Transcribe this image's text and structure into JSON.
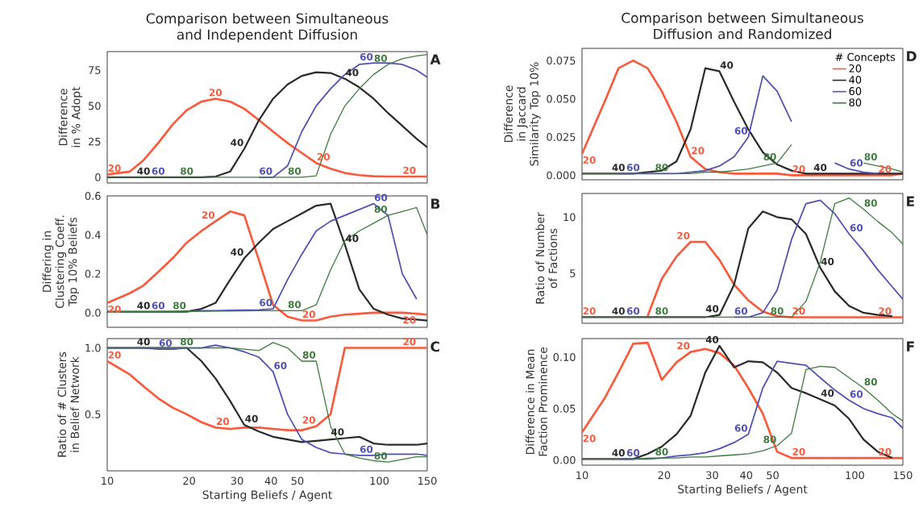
{
  "chart_data": [
    {
      "type": "line",
      "title": "Comparison between Simultaneous and Independent Diffusion",
      "ylabel": "Difference in % Adopt",
      "log": "x",
      "tick_labels": "y",
      "xlim": [
        10,
        150
      ],
      "xticks": [
        10,
        20,
        30,
        40,
        50,
        {
          "value": 60,
          "label": null
        },
        {
          "value": 70,
          "label": null
        },
        {
          "value": 80,
          "label": null
        },
        {
          "value": 90,
          "label": null
        },
        100,
        150
      ],
      "ylim": [
        -4,
        88
      ],
      "yticks": [
        0,
        25,
        50,
        75
      ],
      "x": [
        10,
        12.1,
        13.6,
        15.4,
        17.4,
        19.6,
        22.2,
        25,
        28.3,
        31.9,
        36.1,
        40.7,
        46,
        51.9,
        58.6,
        66.2,
        74.7,
        84.4,
        95.3,
        107.6,
        121.5,
        137.1,
        150
      ],
      "series": [
        {
          "name": "20",
          "color": "#fa5a3c",
          "values": [
            2,
            4,
            12,
            24,
            37,
            47,
            53,
            55,
            53,
            48,
            40,
            32,
            24,
            17,
            10,
            6,
            3,
            1.5,
            0.7,
            0.5,
            0.5,
            0.5,
            0.5
          ]
        },
        {
          "name": "40",
          "color": "#2a2a2a",
          "values": [
            0,
            0,
            0,
            0,
            0,
            0,
            0,
            0.5,
            4,
            20,
            40,
            55,
            65,
            71,
            73.5,
            73,
            69,
            63,
            55,
            45,
            36,
            27,
            21
          ]
        },
        {
          "name": "60",
          "color": "#4f4fb5",
          "values": [
            null,
            null,
            null,
            null,
            null,
            null,
            null,
            null,
            null,
            null,
            0,
            0,
            8,
            32,
            50,
            62,
            72,
            79,
            80,
            80,
            79,
            75,
            70
          ]
        },
        {
          "name": "80",
          "color": "#3e7b3e",
          "values": [
            0,
            0,
            0,
            0,
            0,
            0,
            0,
            0,
            0,
            0,
            0,
            0,
            0,
            0,
            1,
            30,
            50,
            62,
            72,
            79,
            83,
            85,
            86
          ]
        }
      ],
      "annotations": [
        "A"
      ]
    },
    {
      "type": "line",
      "title": "Comparison between Simultaneous Diffusion and Randomized",
      "ylabel": "Difference in Jaccard Similarity Top 10%",
      "log": "x",
      "tick_labels": "y",
      "legend": "top right",
      "legend_title": "# Concepts",
      "xlim": [
        10,
        150
      ],
      "xticks": [
        10,
        20,
        30,
        40,
        50,
        {
          "value": 60,
          "label": null
        },
        {
          "value": 70,
          "label": null
        },
        {
          "value": 80,
          "label": null
        },
        {
          "value": 90,
          "label": null
        },
        100,
        150
      ],
      "ylim": [
        -0.003,
        0.083
      ],
      "yticks": [
        {
          "value": 0,
          "label": "0.000"
        },
        {
          "value": 0.025,
          "label": "0.025"
        },
        {
          "value": 0.05,
          "label": "0.050"
        },
        {
          "value": 0.075,
          "label": "0.075"
        }
      ],
      "x": [
        10,
        12.1,
        13.6,
        15.4,
        17.4,
        19.6,
        22.2,
        25,
        28.3,
        31.9,
        36.1,
        40.7,
        46,
        51.9,
        58.6,
        66.2,
        74.7,
        84.4,
        95.3,
        107.6,
        121.5,
        137.1,
        150
      ],
      "series": [
        {
          "name": "20",
          "color": "#fa5a3c",
          "values": [
            0.014,
            0.048,
            0.07,
            0.075,
            0.07,
            0.055,
            0.035,
            0.012,
            0.004,
            0.002,
            0.001,
            0.001,
            0.001,
            0.001,
            0,
            0,
            0,
            0,
            0,
            0,
            0,
            0,
            0.001
          ]
        },
        {
          "name": "40",
          "color": "#2a2a2a",
          "values": [
            0.001,
            0.001,
            0.001,
            0.001,
            0.002,
            0.003,
            0.009,
            0.03,
            0.07,
            0.068,
            0.048,
            0.03,
            0.015,
            0.007,
            0.003,
            0.001,
            0.001,
            0.001,
            0.001,
            0.001,
            0.001,
            0.001,
            0.001
          ]
        },
        {
          "name": "60",
          "color": "#4f4fb5",
          "values": [
            null,
            null,
            0.001,
            0.001,
            0.001,
            0.001,
            0.001,
            0.002,
            0.003,
            0.006,
            0.012,
            0.025,
            0.065,
            0.055,
            0.035,
            null,
            null,
            0.008,
            0.004,
            0.002,
            0.001,
            null,
            null
          ]
        },
        {
          "name": "80",
          "color": "#3e7b3e",
          "values": [
            0.001,
            0.001,
            0.001,
            0.001,
            0.001,
            0.001,
            0.001,
            0.001,
            0.002,
            0.002,
            0.003,
            0.004,
            0.006,
            0.008,
            0.02,
            null,
            null,
            null,
            null,
            0.008,
            0.006,
            0.004,
            0.002
          ]
        }
      ],
      "annotations": [
        "D"
      ]
    },
    {
      "type": "line",
      "ylabel": "Differing in Clustering Coeff. Top 10% Beliefs",
      "log": "x",
      "tick_labels": "y",
      "xlim": [
        10,
        150
      ],
      "xticks": [
        10,
        20,
        30,
        40,
        50,
        {
          "value": 60,
          "label": null
        },
        {
          "value": 70,
          "label": null
        },
        {
          "value": 80,
          "label": null
        },
        {
          "value": 90,
          "label": null
        },
        100,
        150
      ],
      "ylim": [
        -0.075,
        0.6
      ],
      "yticks": [
        {
          "value": 0,
          "label": "0.0"
        },
        {
          "value": 0.2,
          "label": "0.2"
        },
        {
          "value": 0.4,
          "label": "0.4"
        },
        {
          "value": 0.6,
          "label": "0.6"
        }
      ],
      "x": [
        10,
        12.1,
        13.6,
        15.4,
        17.4,
        19.6,
        22.2,
        25,
        28.3,
        31.9,
        36.1,
        40.7,
        46,
        51.9,
        58.6,
        66.2,
        74.7,
        84.4,
        95.3,
        107.6,
        121.5,
        137.1,
        150
      ],
      "series": [
        {
          "name": "20",
          "color": "#fa5a3c",
          "values": [
            0.05,
            0.1,
            0.14,
            0.21,
            0.28,
            0.36,
            0.42,
            0.47,
            0.52,
            0.5,
            0.27,
            0.04,
            -0.02,
            -0.04,
            -0.04,
            -0.02,
            -0.01,
            -0.005,
            0,
            0,
            0,
            -0.005,
            -0.01
          ]
        },
        {
          "name": "40",
          "color": "#2a2a2a",
          "values": [
            0.005,
            0.005,
            0.005,
            0.005,
            0.005,
            0.005,
            0.02,
            0.05,
            0.17,
            0.28,
            0.36,
            0.43,
            0.47,
            0.51,
            0.55,
            0.56,
            0.35,
            0.12,
            0.02,
            -0.01,
            -0.03,
            -0.035,
            -0.04
          ]
        },
        {
          "name": "60",
          "color": "#4f4fb5",
          "values": [
            null,
            null,
            null,
            0.005,
            0.005,
            0.008,
            0.01,
            0.01,
            0.012,
            0.013,
            0.015,
            0.02,
            0.17,
            0.3,
            0.42,
            0.47,
            0.5,
            0.53,
            0.56,
            0.5,
            0.2,
            0.07,
            null
          ]
        },
        {
          "name": "80",
          "color": "#3e7b3e",
          "values": [
            0.005,
            0.005,
            0.005,
            0.005,
            0.005,
            0.005,
            0.007,
            0.008,
            0.008,
            0.009,
            0.01,
            0.01,
            0.01,
            0.01,
            0.04,
            0.22,
            0.37,
            0.42,
            0.46,
            0.5,
            0.52,
            0.54,
            0.4
          ]
        }
      ],
      "annotations": [
        "B"
      ]
    },
    {
      "type": "line",
      "ylabel": "Ratio of Number of Factions",
      "log": "x",
      "tick_labels": "y",
      "xlim": [
        10,
        150
      ],
      "xticks": [
        10,
        20,
        30,
        40,
        50,
        {
          "value": 60,
          "label": null
        },
        {
          "value": 70,
          "label": null
        },
        {
          "value": 80,
          "label": null
        },
        {
          "value": 90,
          "label": null
        },
        100,
        150
      ],
      "ylim": [
        0.56,
        12.1
      ],
      "yticks": [
        5,
        10
      ],
      "x": [
        10,
        12.1,
        13.6,
        15.4,
        17.4,
        19.6,
        22.2,
        25,
        28.3,
        31.9,
        36.1,
        40.7,
        46,
        51.9,
        58.6,
        66.2,
        74.7,
        84.4,
        95.3,
        107.6,
        121.5,
        137.1,
        150
      ],
      "series": [
        {
          "name": "20",
          "color": "#fa5a3c",
          "values": [
            null,
            null,
            null,
            null,
            1.2,
            4.5,
            6.5,
            7.8,
            7.8,
            6.2,
            4.0,
            2.6,
            1.6,
            1.2,
            1.1,
            1.1,
            1.1,
            1.1,
            1.1,
            1.1,
            1.1,
            1.1,
            1.1
          ]
        },
        {
          "name": "40",
          "color": "#2a2a2a",
          "values": [
            1.1,
            1.1,
            1.1,
            1.1,
            1.1,
            1.1,
            1.1,
            1.1,
            1.1,
            1.3,
            4,
            9,
            10.5,
            10,
            9.8,
            8.5,
            5.5,
            3.4,
            2.1,
            1.5,
            1.3,
            1.2,
            null
          ]
        },
        {
          "name": "60",
          "color": "#4f4fb5",
          "values": [
            null,
            null,
            null,
            null,
            null,
            null,
            null,
            null,
            null,
            null,
            1.1,
            1.1,
            1.5,
            3.5,
            8,
            11.2,
            11.5,
            10.3,
            8.5,
            7,
            5.3,
            3.8,
            2.7
          ]
        },
        {
          "name": "80",
          "color": "#3e7b3e",
          "values": [
            1.1,
            1.1,
            1.1,
            1.1,
            1.1,
            1.1,
            1.1,
            1.1,
            1.1,
            1.1,
            1.1,
            1.1,
            1.1,
            1.1,
            1.1,
            2.5,
            6,
            11.2,
            11.7,
            10.7,
            9.6,
            8.6,
            7.6
          ]
        }
      ],
      "annotations": [
        "E"
      ]
    },
    {
      "type": "line",
      "ylabel": "Ratio of # Clusters in Belief Network",
      "xlabel": "Starting Beliefs / Agent",
      "log": "x",
      "xlim": [
        10,
        150
      ],
      "xticks": [
        10,
        20,
        30,
        40,
        50,
        {
          "value": 60,
          "label": null
        },
        {
          "value": 70,
          "label": null
        },
        {
          "value": 80,
          "label": null
        },
        {
          "value": 90,
          "label": null
        },
        100,
        150
      ],
      "ylim": [
        0.074,
        1.07
      ],
      "yticks": [
        0.5,
        {
          "value": 1,
          "label": "1.0"
        }
      ],
      "x": [
        10,
        12.1,
        13.6,
        15.4,
        17.4,
        19.6,
        22.2,
        25,
        28.3,
        31.9,
        36.1,
        40.7,
        46,
        51.9,
        58.6,
        66.2,
        74.7,
        84.4,
        95.3,
        107.6,
        121.5,
        137.1,
        150
      ],
      "series": [
        {
          "name": "20",
          "color": "#fa5a3c",
          "values": [
            0.9,
            0.8,
            0.71,
            0.62,
            0.55,
            0.5,
            0.44,
            0.4,
            0.39,
            0.4,
            0.4,
            0.39,
            0.38,
            0.38,
            0.41,
            0.5,
            1.0,
            1.0,
            1.0,
            1.0,
            1.0,
            1.0,
            1.0
          ]
        },
        {
          "name": "40",
          "color": "#2a2a2a",
          "values": [
            1,
            1,
            1,
            1,
            1,
            1,
            0.9,
            0.77,
            0.6,
            0.42,
            0.37,
            0.33,
            0.31,
            0.29,
            0.3,
            0.31,
            0.32,
            0.33,
            0.28,
            0.27,
            0.27,
            0.27,
            0.28
          ]
        },
        {
          "name": "60",
          "color": "#4f4fb5",
          "values": [
            1,
            1,
            1,
            0.99,
            0.99,
            1,
            1,
            1.02,
            1.0,
            0.97,
            0.93,
            0.82,
            0.5,
            0.31,
            0.25,
            0.21,
            0.2,
            0.19,
            0.19,
            0.2,
            0.2,
            0.2,
            0.19
          ]
        },
        {
          "name": "80",
          "color": "#3e7b3e",
          "values": [
            1,
            1,
            1,
            1,
            1,
            1,
            1,
            1,
            1,
            0.99,
            0.98,
            1.04,
            1.0,
            0.9,
            0.9,
            0.41,
            0.2,
            0.17,
            0.15,
            0.14,
            0.16,
            0.18,
            0.18
          ]
        }
      ],
      "annotations": [
        "C"
      ]
    },
    {
      "type": "line",
      "ylabel": "Difference in Mean Faction Prominence",
      "xlabel": "Starting Beliefs / Agent",
      "log": "x",
      "xlim": [
        10,
        150
      ],
      "xticks": [
        10,
        20,
        30,
        40,
        50,
        {
          "value": 60,
          "label": null
        },
        {
          "value": 70,
          "label": null
        },
        {
          "value": 80,
          "label": null
        },
        {
          "value": 90,
          "label": null
        },
        100,
        150
      ],
      "ylim": [
        -0.005,
        0.118
      ],
      "yticks": [
        {
          "value": 0,
          "label": "0.00"
        },
        0.05,
        {
          "value": 0.1,
          "label": "0.10"
        }
      ],
      "x": [
        10,
        12.1,
        13.6,
        15.4,
        17.4,
        19.6,
        22.2,
        25,
        28.3,
        31.9,
        36.1,
        40.7,
        46,
        51.9,
        58.6,
        66.2,
        74.7,
        84.4,
        95.3,
        107.6,
        121.5,
        137.1,
        150
      ],
      "series": [
        {
          "name": "20",
          "color": "#fa5a3c",
          "values": [
            0.027,
            0.06,
            0.085,
            0.113,
            0.114,
            0.078,
            0.095,
            0.105,
            0.108,
            0.104,
            0.092,
            0.07,
            0.045,
            0.008,
            0.002,
            0.002,
            0.002,
            0.002,
            0.002,
            0.002,
            0.002,
            0.002,
            0.002
          ]
        },
        {
          "name": "40",
          "color": "#2a2a2a",
          "values": [
            0.001,
            0.001,
            0.001,
            0.001,
            0.006,
            0.013,
            0.025,
            0.043,
            0.085,
            0.111,
            0.09,
            0.096,
            0.095,
            0.085,
            0.07,
            0.065,
            0.059,
            0.053,
            0.04,
            0.02,
            0.008,
            0.002,
            null
          ]
        },
        {
          "name": "60",
          "color": "#4f4fb5",
          "values": [
            null,
            null,
            0.001,
            0.001,
            0.001,
            0.002,
            0.004,
            0.005,
            0.007,
            0.011,
            0.017,
            0.025,
            0.07,
            0.096,
            0.094,
            0.092,
            0.08,
            0.068,
            0.058,
            0.05,
            0.045,
            0.041,
            0.031
          ]
        },
        {
          "name": "80",
          "color": "#3e7b3e",
          "values": [
            0.001,
            0.001,
            0.001,
            0.001,
            0.002,
            0.002,
            0.002,
            0.003,
            0.003,
            0.004,
            0.005,
            0.006,
            0.009,
            0.014,
            0.026,
            0.088,
            0.091,
            0.09,
            0.08,
            0.07,
            0.058,
            0.045,
            0.038
          ]
        }
      ],
      "annotations": [
        "F"
      ]
    }
  ]
}
